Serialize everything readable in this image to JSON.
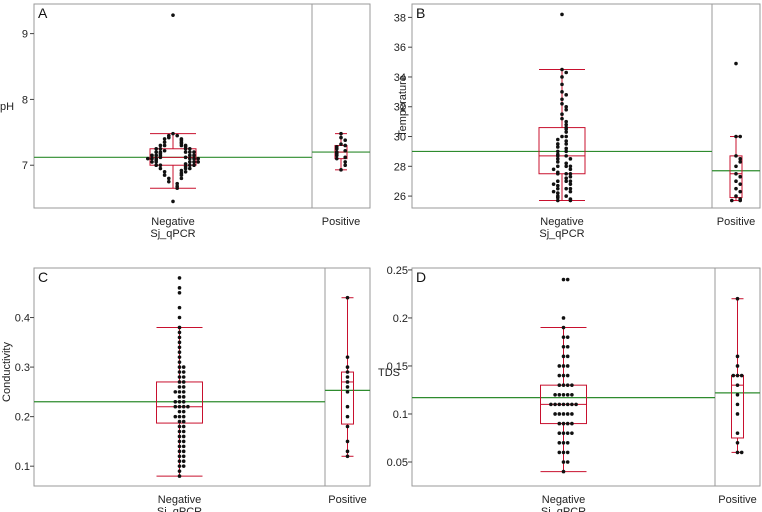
{
  "chart_data": [
    {
      "type": "scatter",
      "letter": "A",
      "ylabel": "pH",
      "xlabel": "Sj_qPCR",
      "ylim": [
        6.35,
        9.45
      ],
      "yticks": [
        7,
        8,
        9
      ],
      "categories": [
        "Negative",
        "Positive"
      ],
      "groups": [
        {
          "name": "Negative",
          "mean": 7.12,
          "box": {
            "q1": 7.0,
            "median": 7.12,
            "q3": 7.25,
            "whisker_low": 6.65,
            "whisker_high": 7.48
          },
          "values": [
            9.28,
            7.48,
            7.45,
            7.45,
            7.42,
            7.4,
            7.4,
            7.38,
            7.35,
            7.35,
            7.33,
            7.3,
            7.3,
            7.3,
            7.3,
            7.28,
            7.25,
            7.25,
            7.25,
            7.25,
            7.22,
            7.2,
            7.2,
            7.2,
            7.2,
            7.2,
            7.18,
            7.15,
            7.15,
            7.15,
            7.15,
            7.15,
            7.12,
            7.12,
            7.1,
            7.1,
            7.1,
            7.1,
            7.1,
            7.1,
            7.08,
            7.05,
            7.05,
            7.05,
            7.05,
            7.05,
            7.02,
            7.0,
            7.0,
            7.0,
            7.0,
            6.98,
            6.95,
            6.95,
            6.95,
            6.92,
            6.9,
            6.9,
            6.88,
            6.85,
            6.85,
            6.8,
            6.8,
            6.75,
            6.72,
            6.68,
            6.65,
            6.45
          ]
        },
        {
          "name": "Positive",
          "mean": 7.2,
          "box": {
            "q1": 7.1,
            "median": 7.2,
            "q3": 7.3,
            "whisker_low": 6.93,
            "whisker_high": 7.48
          },
          "values": [
            7.48,
            7.42,
            7.38,
            7.32,
            7.3,
            7.28,
            7.25,
            7.22,
            7.2,
            7.18,
            7.15,
            7.12,
            7.1,
            7.05,
            7.0,
            6.93
          ]
        }
      ]
    },
    {
      "type": "scatter",
      "letter": "B",
      "ylabel": "Temperature",
      "xlabel": "Sj_qPCR",
      "ylim": [
        25.2,
        38.9
      ],
      "yticks": [
        26,
        28,
        30,
        32,
        34,
        36,
        38
      ],
      "categories": [
        "Negative",
        "Positive"
      ],
      "groups": [
        {
          "name": "Negative",
          "mean": 29.0,
          "box": {
            "q1": 27.5,
            "median": 28.7,
            "q3": 30.6,
            "whisker_low": 25.7,
            "whisker_high": 34.5
          },
          "values": [
            38.2,
            34.5,
            34.3,
            34.0,
            33.5,
            33.0,
            32.8,
            32.5,
            32.2,
            32.0,
            31.8,
            31.5,
            31.2,
            31.0,
            30.8,
            30.6,
            30.5,
            30.3,
            30.0,
            30.0,
            29.8,
            29.7,
            29.5,
            29.5,
            29.3,
            29.2,
            29.0,
            29.0,
            28.8,
            28.7,
            28.7,
            28.5,
            28.5,
            28.3,
            28.2,
            28.0,
            28.0,
            28.0,
            27.8,
            27.8,
            27.6,
            27.5,
            27.5,
            27.5,
            27.3,
            27.2,
            27.0,
            27.0,
            27.0,
            26.8,
            26.8,
            26.7,
            26.5,
            26.5,
            26.5,
            26.3,
            26.3,
            26.2,
            26.0,
            26.0,
            25.9,
            25.8,
            25.7,
            25.7
          ]
        },
        {
          "name": "Positive",
          "mean": 27.7,
          "box": {
            "q1": 25.9,
            "median": 27.5,
            "q3": 28.7,
            "whisker_low": 25.7,
            "whisker_high": 30.0
          },
          "values": [
            34.9,
            30.0,
            30.0,
            28.7,
            28.5,
            28.3,
            28.0,
            27.5,
            27.3,
            27.0,
            26.8,
            26.5,
            26.3,
            26.0,
            25.8,
            25.7,
            25.7
          ]
        }
      ]
    },
    {
      "type": "scatter",
      "letter": "C",
      "ylabel": "Conductivity",
      "xlabel": "Sj_qPCR",
      "ylim": [
        0.06,
        0.5
      ],
      "yticks": [
        0.1,
        0.2,
        0.3,
        0.4
      ],
      "categories": [
        "Negative",
        "Positive"
      ],
      "groups": [
        {
          "name": "Negative",
          "mean": 0.23,
          "box": {
            "q1": 0.187,
            "median": 0.22,
            "q3": 0.27,
            "whisker_low": 0.08,
            "whisker_high": 0.38
          },
          "values": [
            0.48,
            0.46,
            0.45,
            0.42,
            0.4,
            0.38,
            0.37,
            0.36,
            0.35,
            0.34,
            0.33,
            0.32,
            0.31,
            0.3,
            0.3,
            0.29,
            0.29,
            0.28,
            0.28,
            0.27,
            0.27,
            0.26,
            0.26,
            0.25,
            0.25,
            0.25,
            0.24,
            0.24,
            0.23,
            0.23,
            0.23,
            0.22,
            0.22,
            0.22,
            0.22,
            0.21,
            0.21,
            0.2,
            0.2,
            0.2,
            0.19,
            0.19,
            0.18,
            0.18,
            0.17,
            0.17,
            0.16,
            0.16,
            0.15,
            0.15,
            0.14,
            0.14,
            0.13,
            0.13,
            0.12,
            0.12,
            0.11,
            0.11,
            0.1,
            0.1,
            0.09,
            0.08
          ]
        },
        {
          "name": "Positive",
          "mean": 0.253,
          "box": {
            "q1": 0.185,
            "median": 0.27,
            "q3": 0.29,
            "whisker_low": 0.12,
            "whisker_high": 0.44
          },
          "values": [
            0.44,
            0.32,
            0.3,
            0.29,
            0.28,
            0.27,
            0.26,
            0.25,
            0.22,
            0.2,
            0.18,
            0.15,
            0.13,
            0.12
          ]
        }
      ]
    },
    {
      "type": "scatter",
      "letter": "D",
      "ylabel": "TDS",
      "xlabel": "Sj_qPCR",
      "ylim": [
        0.025,
        0.252
      ],
      "yticks": [
        0.05,
        0.1,
        0.15,
        0.2,
        0.25
      ],
      "ytick_labels": [
        "0.05",
        "0.1",
        "0.15",
        "0.2",
        "0.25"
      ],
      "categories": [
        "Negative",
        "Positive"
      ],
      "groups": [
        {
          "name": "Negative",
          "mean": 0.117,
          "box": {
            "q1": 0.09,
            "median": 0.11,
            "q3": 0.13,
            "whisker_low": 0.04,
            "whisker_high": 0.19
          },
          "values": [
            0.24,
            0.24,
            0.2,
            0.19,
            0.18,
            0.18,
            0.17,
            0.17,
            0.16,
            0.16,
            0.15,
            0.15,
            0.15,
            0.14,
            0.14,
            0.14,
            0.13,
            0.13,
            0.13,
            0.13,
            0.12,
            0.12,
            0.12,
            0.12,
            0.12,
            0.11,
            0.11,
            0.11,
            0.11,
            0.11,
            0.11,
            0.11,
            0.1,
            0.1,
            0.1,
            0.1,
            0.1,
            0.09,
            0.09,
            0.09,
            0.09,
            0.08,
            0.08,
            0.08,
            0.08,
            0.07,
            0.07,
            0.07,
            0.06,
            0.06,
            0.06,
            0.05,
            0.05,
            0.04
          ]
        },
        {
          "name": "Positive",
          "mean": 0.122,
          "box": {
            "q1": 0.075,
            "median": 0.13,
            "q3": 0.14,
            "whisker_low": 0.06,
            "whisker_high": 0.22
          },
          "values": [
            0.22,
            0.16,
            0.15,
            0.14,
            0.14,
            0.14,
            0.13,
            0.12,
            0.11,
            0.1,
            0.08,
            0.07,
            0.06,
            0.06
          ]
        }
      ]
    }
  ],
  "colors": {
    "box": "#c8102e",
    "mean_line": "#2e8b2e",
    "point": "#111111",
    "frame": "#9a9a9a"
  }
}
